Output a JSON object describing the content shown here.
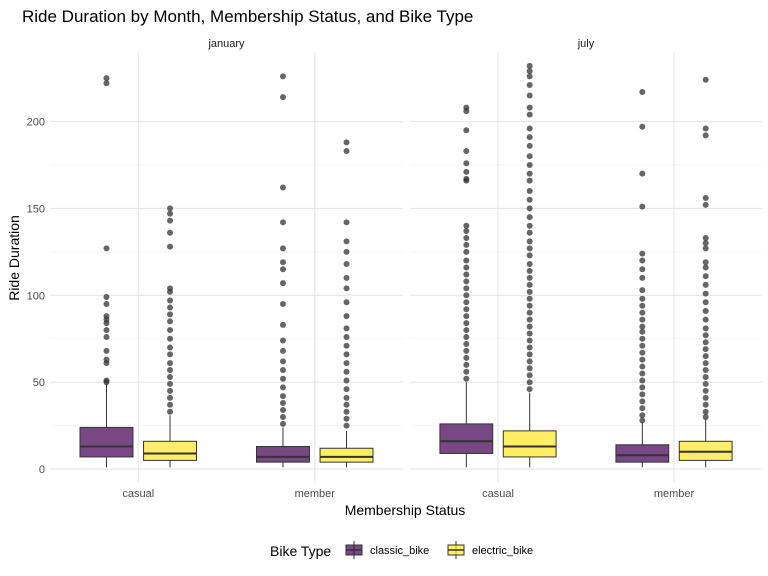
{
  "chart_data": {
    "type": "boxplot",
    "title": "Ride Duration by Month, Membership Status, and Bike Type",
    "xlabel": "Membership Status",
    "ylabel": "Ride Duration",
    "ylim": [
      -8,
      240
    ],
    "yticks": [
      0,
      50,
      100,
      150,
      200
    ],
    "categories": [
      "casual",
      "member"
    ],
    "legend": {
      "title": "Bike Type",
      "position": "bottom",
      "entries": [
        {
          "name": "classic_bike",
          "color": "#440154"
        },
        {
          "name": "electric_bike",
          "color": "#FDE725"
        }
      ]
    },
    "grid": true,
    "facets": [
      {
        "label": "january",
        "boxes": [
          {
            "category": "casual",
            "bike": "classic_bike",
            "whisker_low": 1,
            "q1": 7,
            "median": 13,
            "q3": 24,
            "whisker_high": 49,
            "outliers": [
              225,
              222,
              127,
              99,
              95,
              88,
              86,
              84,
              80,
              76,
              68,
              63,
              61,
              51,
              50
            ]
          },
          {
            "category": "casual",
            "bike": "electric_bike",
            "whisker_low": 1,
            "q1": 5,
            "median": 9,
            "q3": 16,
            "whisker_high": 31,
            "outliers": [
              150,
              147,
              143,
              136,
              128,
              104,
              102,
              97,
              93,
              89,
              85,
              80,
              75,
              70,
              66,
              61,
              57,
              53,
              49,
              45,
              41,
              37,
              33
            ]
          },
          {
            "category": "member",
            "bike": "classic_bike",
            "whisker_low": 1,
            "q1": 4,
            "median": 7,
            "q3": 13,
            "whisker_high": 24,
            "outliers": [
              226,
              214,
              162,
              142,
              127,
              119,
              115,
              107,
              95,
              83,
              74,
              68,
              62,
              57,
              52,
              47,
              42,
              38,
              34,
              30,
              26
            ]
          },
          {
            "category": "member",
            "bike": "electric_bike",
            "whisker_low": 1,
            "q1": 4,
            "median": 7,
            "q3": 12,
            "whisker_high": 22,
            "outliers": [
              188,
              183,
              142,
              131,
              125,
              118,
              110,
              104,
              96,
              88,
              81,
              76,
              71,
              66,
              61,
              56,
              51,
              46,
              41,
              37,
              33,
              29,
              25
            ]
          }
        ]
      },
      {
        "label": "july",
        "boxes": [
          {
            "category": "casual",
            "bike": "classic_bike",
            "whisker_low": 1,
            "q1": 9,
            "median": 16,
            "q3": 26,
            "whisker_high": 50,
            "outliers": [
              208,
              206,
              195,
              183,
              176,
              171,
              167,
              166,
              140,
              137,
              133,
              129,
              125,
              120,
              116,
              112,
              108,
              104,
              100,
              96,
              92,
              88,
              84,
              80,
              76,
              72,
              68,
              64,
              60,
              56,
              52
            ]
          },
          {
            "category": "casual",
            "bike": "electric_bike",
            "whisker_low": 1,
            "q1": 7,
            "median": 13,
            "q3": 22,
            "whisker_high": 44,
            "outliers": [
              232,
              229,
              226,
              221,
              215,
              208,
              204,
              196,
              191,
              186,
              180,
              175,
              170,
              166,
              160,
              155,
              150,
              145,
              140,
              136,
              131,
              127,
              123,
              118,
              114,
              110,
              106,
              102,
              98,
              94,
              90,
              86,
              82,
              78,
              74,
              70,
              66,
              62,
              58,
              54,
              50,
              46
            ]
          },
          {
            "category": "member",
            "bike": "classic_bike",
            "whisker_low": 1,
            "q1": 4,
            "median": 8,
            "q3": 14,
            "whisker_high": 27,
            "outliers": [
              217,
              197,
              170,
              151,
              124,
              120,
              115,
              110,
              103,
              98,
              94,
              90,
              86,
              82,
              79,
              75,
              71,
              67,
              63,
              59,
              55,
              51,
              47,
              43,
              39,
              35,
              31,
              28
            ]
          },
          {
            "category": "member",
            "bike": "electric_bike",
            "whisker_low": 1,
            "q1": 5,
            "median": 10,
            "q3": 16,
            "whisker_high": 29,
            "outliers": [
              224,
              196,
              192,
              156,
              152,
              133,
              130,
              127,
              119,
              116,
              111,
              106,
              101,
              96,
              91,
              86,
              81,
              77,
              73,
              69,
              65,
              61,
              57,
              53,
              49,
              45,
              41,
              37,
              33,
              30
            ]
          }
        ]
      }
    ]
  }
}
